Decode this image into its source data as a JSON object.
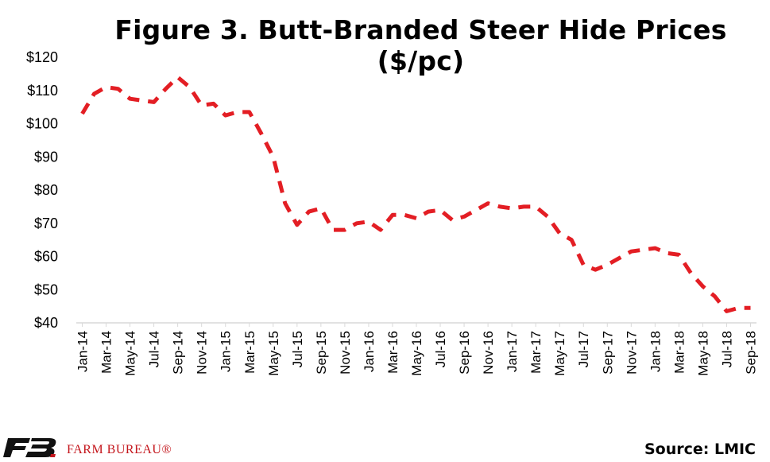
{
  "title": "Figure 3. Butt-Branded Steer Hide Prices ($/pc)",
  "source": "Source: LMIC",
  "organization": "FARM BUREAU®",
  "logo_mark": "FB",
  "colors": {
    "series": "#e31e24",
    "text": "#000000",
    "brand": "#c4161c",
    "axis": "#d9d9d9"
  },
  "chart_data": {
    "type": "line",
    "title": "Figure 3. Butt-Branded Steer Hide Prices ($/pc)",
    "xlabel": "",
    "ylabel": "",
    "ylim": [
      40,
      120
    ],
    "yticks": [
      40,
      50,
      60,
      70,
      80,
      90,
      100,
      110,
      120
    ],
    "ytick_labels": [
      "$40",
      "$50",
      "$60",
      "$70",
      "$80",
      "$90",
      "$100",
      "$110",
      "$120"
    ],
    "line_style": "dashed",
    "grid": false,
    "legend": "none",
    "x_tick_labels": [
      "Jan-14",
      "Mar-14",
      "May-14",
      "Jul-14",
      "Sep-14",
      "Nov-14",
      "Jan-15",
      "Mar-15",
      "May-15",
      "Jul-15",
      "Sep-15",
      "Nov-15",
      "Jan-16",
      "Mar-16",
      "May-16",
      "Jul-16",
      "Sep-16",
      "Nov-16",
      "Jan-17",
      "Mar-17",
      "May-17",
      "Jul-17",
      "Sep-17",
      "Nov-17",
      "Jan-18",
      "Mar-18",
      "May-18",
      "Jul-18",
      "Sep-18"
    ],
    "x": [
      "Jan-14",
      "Feb-14",
      "Mar-14",
      "Apr-14",
      "May-14",
      "Jun-14",
      "Jul-14",
      "Aug-14",
      "Sep-14",
      "Oct-14",
      "Nov-14",
      "Dec-14",
      "Jan-15",
      "Feb-15",
      "Mar-15",
      "Apr-15",
      "May-15",
      "Jun-15",
      "Jul-15",
      "Aug-15",
      "Sep-15",
      "Oct-15",
      "Nov-15",
      "Dec-15",
      "Jan-16",
      "Feb-16",
      "Mar-16",
      "Apr-16",
      "May-16",
      "Jun-16",
      "Jul-16",
      "Aug-16",
      "Sep-16",
      "Oct-16",
      "Nov-16",
      "Dec-16",
      "Jan-17",
      "Feb-17",
      "Mar-17",
      "Apr-17",
      "May-17",
      "Jun-17",
      "Jul-17",
      "Aug-17",
      "Sep-17",
      "Oct-17",
      "Nov-17",
      "Dec-17",
      "Jan-18",
      "Feb-18",
      "Mar-18",
      "Apr-18",
      "May-18",
      "Jun-18",
      "Jul-18",
      "Aug-18",
      "Sep-18"
    ],
    "series": [
      {
        "values": [
          103,
          109,
          111,
          110.5,
          107.5,
          107,
          106.5,
          110.5,
          114,
          111,
          105.5,
          106,
          102.5,
          103.5,
          103.5,
          97,
          90,
          76,
          69.5,
          73.5,
          74.5,
          68,
          68,
          70,
          70.5,
          68,
          72.5,
          72.5,
          71.5,
          73.5,
          74,
          71,
          72,
          74,
          76,
          75,
          74.5,
          75,
          75,
          72,
          67,
          65,
          57.5,
          56,
          57.5,
          59.5,
          61.5,
          62,
          62.5,
          61,
          60.5,
          55,
          51,
          48,
          43.5,
          44.5,
          44.5
        ]
      }
    ]
  }
}
